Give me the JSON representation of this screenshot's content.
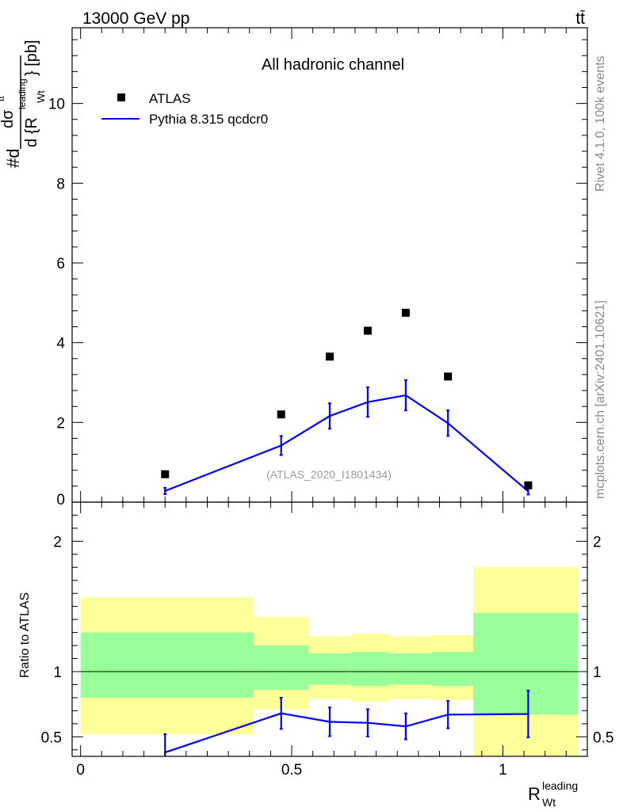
{
  "header": {
    "energy_label": "13000 GeV pp",
    "process_label": "tt̄"
  },
  "side_labels": {
    "rivet": "Rivet 4.1.0,  100k events",
    "mcplots": "mcplots.cern.ch [arXiv:2401.10621]"
  },
  "chart_data": {
    "type": "line",
    "title": "All hadronic channel",
    "analysis_id": "(ATLAS_2020_I1801434)",
    "ylabel_main": "#d dσ^{t̅t} / d {R_Wt^leading} [pb]",
    "ylabel_ratio": "Ratio to ATLAS",
    "xlabel": "R_Wt^leading",
    "xlim": [
      -0.02,
      1.2
    ],
    "ylim_main": [
      0,
      11.9
    ],
    "ylim_ratio": [
      0.35,
      2.3
    ],
    "x_ticks": [
      "0",
      "0.5",
      "1"
    ],
    "y_ticks_main": [
      "2",
      "4",
      "6",
      "8",
      "10"
    ],
    "y_ticks_ratio": [
      "0.5",
      "1",
      "2"
    ],
    "legend": {
      "position": "top-left",
      "entries": [
        "ATLAS",
        "Pythia 8.315 qcdcr0"
      ]
    },
    "atlas": {
      "name": "ATLAS",
      "color": "#000000",
      "x": [
        0.2,
        0.475,
        0.59,
        0.68,
        0.77,
        0.87,
        1.06
      ],
      "y": [
        0.7,
        2.2,
        3.65,
        4.3,
        4.75,
        3.15,
        0.42
      ]
    },
    "pythia": {
      "name": "Pythia 8.315 qcdcr0",
      "color": "#0000ff",
      "x": [
        0.2,
        0.475,
        0.59,
        0.68,
        0.77,
        0.87,
        1.06
      ],
      "y": [
        0.28,
        1.42,
        2.16,
        2.51,
        2.68,
        1.98,
        0.27
      ],
      "err": [
        0.08,
        0.24,
        0.32,
        0.37,
        0.38,
        0.32,
        0.08
      ]
    },
    "ratio": {
      "x": [
        0.2,
        0.475,
        0.59,
        0.68,
        0.77,
        0.87,
        1.06
      ],
      "y": [
        0.38,
        0.68,
        0.615,
        0.607,
        0.58,
        0.67,
        0.675
      ],
      "err": [
        0.14,
        0.12,
        0.11,
        0.105,
        0.1,
        0.105,
        0.18
      ]
    },
    "bands": [
      {
        "x0": 0.0,
        "x1": 0.41,
        "green": [
          0.8,
          1.3
        ],
        "yellow": [
          0.52,
          1.57
        ]
      },
      {
        "x0": 0.41,
        "x1": 0.54,
        "green": [
          0.86,
          1.2
        ],
        "yellow": [
          0.71,
          1.42
        ]
      },
      {
        "x0": 0.54,
        "x1": 0.64,
        "green": [
          0.9,
          1.14
        ],
        "yellow": [
          0.79,
          1.27
        ]
      },
      {
        "x0": 0.64,
        "x1": 0.73,
        "green": [
          0.89,
          1.15
        ],
        "yellow": [
          0.77,
          1.29
        ]
      },
      {
        "x0": 0.73,
        "x1": 0.83,
        "green": [
          0.9,
          1.14
        ],
        "yellow": [
          0.79,
          1.27
        ]
      },
      {
        "x0": 0.83,
        "x1": 0.93,
        "green": [
          0.89,
          1.15
        ],
        "yellow": [
          0.78,
          1.28
        ]
      },
      {
        "x0": 0.93,
        "x1": 1.205,
        "green": [
          0.67,
          1.45
        ],
        "yellow": [
          0.35,
          1.8
        ]
      }
    ]
  }
}
